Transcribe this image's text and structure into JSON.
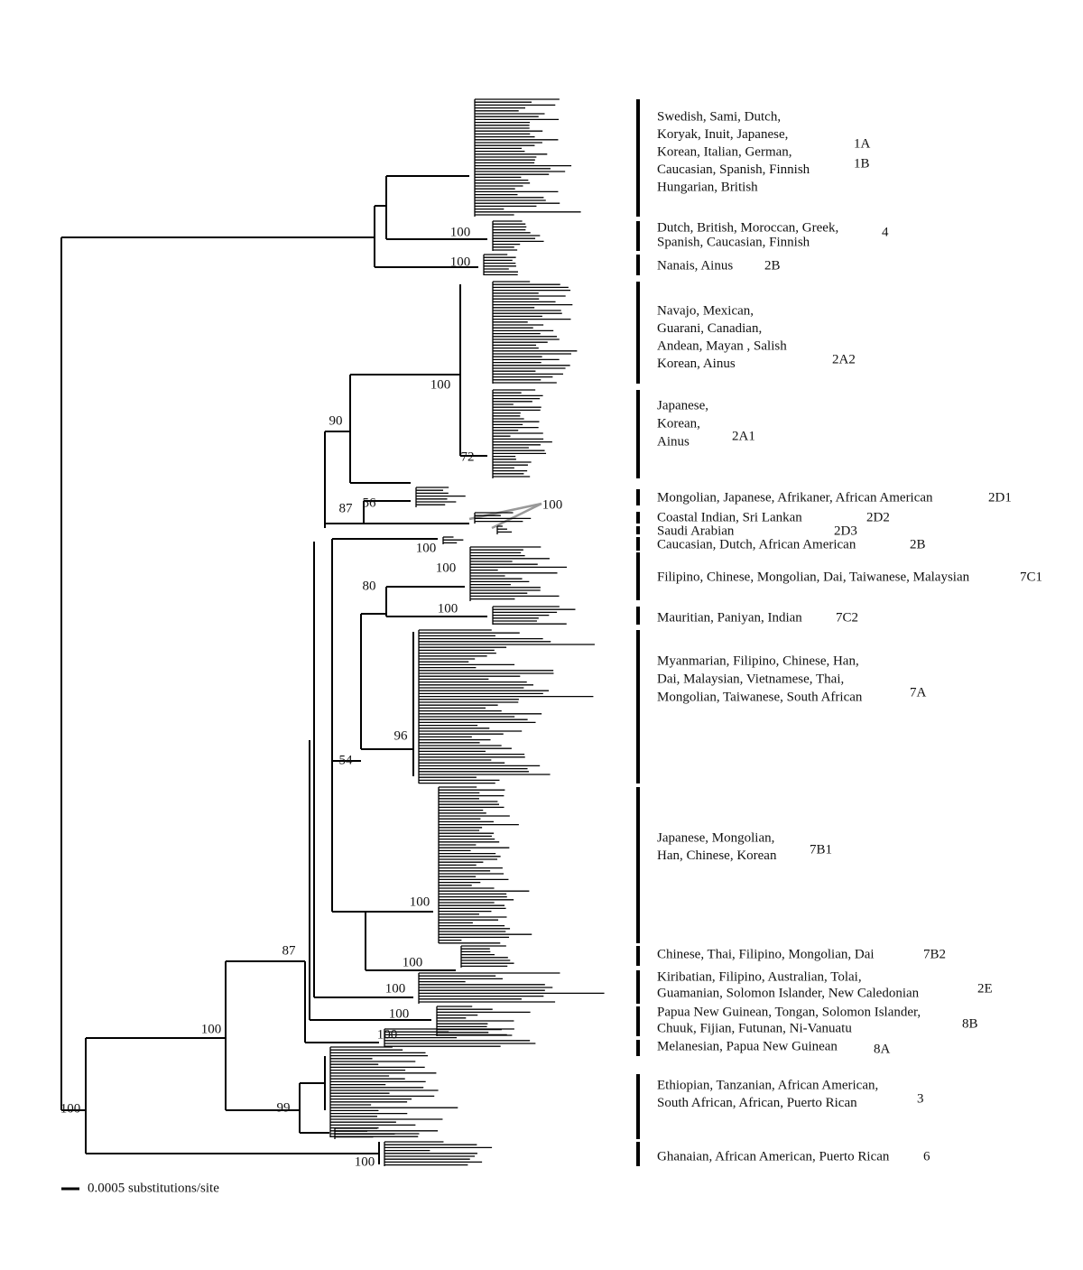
{
  "clades": [
    {
      "lines": [
        "Swedish, Sami, Dutch,",
        "Koryak, Inuit, Japanese,",
        "Korean, Italian, German,",
        "Caucasian, Spanish, Finnish",
        "Hungarian, British"
      ],
      "subtypes": [
        "1A",
        "1B"
      ]
    },
    {
      "lines": [
        "Dutch, British, Moroccan, Greek,",
        "Spanish, Caucasian, Finnish"
      ],
      "subtypes": [
        "4"
      ]
    },
    {
      "lines": [
        "Nanais, Ainus"
      ],
      "subtypes": [
        "2B"
      ]
    },
    {
      "lines": [
        "Navajo, Mexican,",
        "Guarani, Canadian,",
        "Andean, Mayan , Salish",
        "Korean, Ainus"
      ],
      "subtypes": [
        "2A2"
      ]
    },
    {
      "lines": [
        "Japanese,",
        "Korean,",
        "Ainus"
      ],
      "subtypes": [
        "2A1"
      ]
    },
    {
      "lines": [
        "Mongolian, Japanese, Afrikaner, African American"
      ],
      "subtypes": [
        "2D1"
      ]
    },
    {
      "lines": [
        "Coastal Indian, Sri Lankan"
      ],
      "subtypes": [
        "2D2"
      ]
    },
    {
      "lines": [
        "Saudi Arabian"
      ],
      "subtypes": [
        "2D3"
      ]
    },
    {
      "lines": [
        "Caucasian, Dutch, African American"
      ],
      "subtypes": [
        "2B"
      ]
    },
    {
      "lines": [
        "Filipino, Chinese, Mongolian, Dai, Taiwanese, Malaysian"
      ],
      "subtypes": [
        "7C1"
      ]
    },
    {
      "lines": [
        "Mauritian, Paniyan, Indian"
      ],
      "subtypes": [
        "7C2"
      ]
    },
    {
      "lines": [
        "Myanmarian, Filipino, Chinese, Han,",
        "Dai, Malaysian, Vietnamese, Thai,",
        "Mongolian, Taiwanese, South African"
      ],
      "subtypes": [
        "7A"
      ]
    },
    {
      "lines": [
        "Japanese, Mongolian,",
        "Han, Chinese, Korean"
      ],
      "subtypes": [
        "7B1"
      ]
    },
    {
      "lines": [
        "Chinese, Thai, Filipino, Mongolian, Dai"
      ],
      "subtypes": [
        "7B2"
      ]
    },
    {
      "lines": [
        "Kiribatian, Filipino, Australian, Tolai,",
        "Guamanian, Solomon Islander, New Caledonian"
      ],
      "subtypes": [
        "2E"
      ]
    },
    {
      "lines": [
        "Papua New Guinean, Tongan, Solomon Islander,",
        "Chuuk, Fijian, Futunan, Ni-Vanuatu"
      ],
      "subtypes": [
        "8B"
      ]
    },
    {
      "lines": [
        "Melanesian, Papua New Guinean"
      ],
      "subtypes": [
        "8A"
      ]
    },
    {
      "lines": [
        "Ethiopian, Tanzanian, African American,",
        "South African, African, Puerto Rican"
      ],
      "subtypes": [
        "3"
      ]
    },
    {
      "lines": [
        "Ghanaian, African American, Puerto Rican"
      ],
      "subtypes": [
        "6"
      ]
    }
  ],
  "bootstrap": [
    100,
    100,
    100,
    90,
    72,
    87,
    56,
    100,
    100,
    100,
    80,
    100,
    96,
    54,
    100,
    100,
    87,
    100,
    100,
    100,
    100,
    99,
    100,
    100
  ],
  "scale_bar": {
    "label": "0.0005 substitutions/site"
  }
}
